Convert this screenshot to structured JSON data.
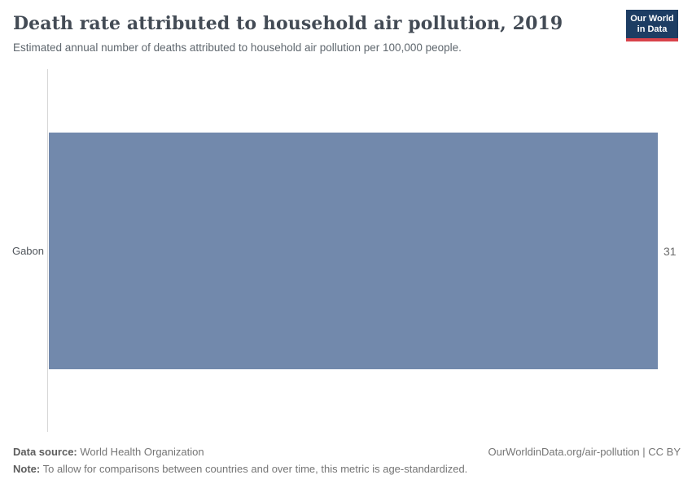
{
  "header": {
    "title": "Death rate attributed to household air pollution, 2019",
    "subtitle": "Estimated annual number of deaths attributed to household air pollution per 100,000 people.",
    "logo": {
      "line1": "Our World",
      "line2": "in Data"
    }
  },
  "chart_data": {
    "type": "bar",
    "orientation": "horizontal",
    "title": "Death rate attributed to household air pollution, 2019",
    "subtitle": "Estimated annual number of deaths attributed to household air pollution per 100,000 people.",
    "categories": [
      "Gabon"
    ],
    "values": [
      31
    ],
    "xlim": [
      0,
      31
    ],
    "grid": false,
    "legend": "none",
    "value_label_position": "end-of-bar"
  },
  "footer": {
    "datasource_label": "Data source:",
    "datasource_value": " World Health Organization",
    "note_label": "Note:",
    "note_value": " To allow for comparisons between countries and over time, this metric is age-standardized.",
    "link": "OurWorldinData.org/air-pollution | CC BY"
  },
  "colors": {
    "bar": "#7289ac",
    "logo_background": "#1d3d63",
    "logo_accent": "#d8424a",
    "axis_line": "#d7d7d7"
  }
}
